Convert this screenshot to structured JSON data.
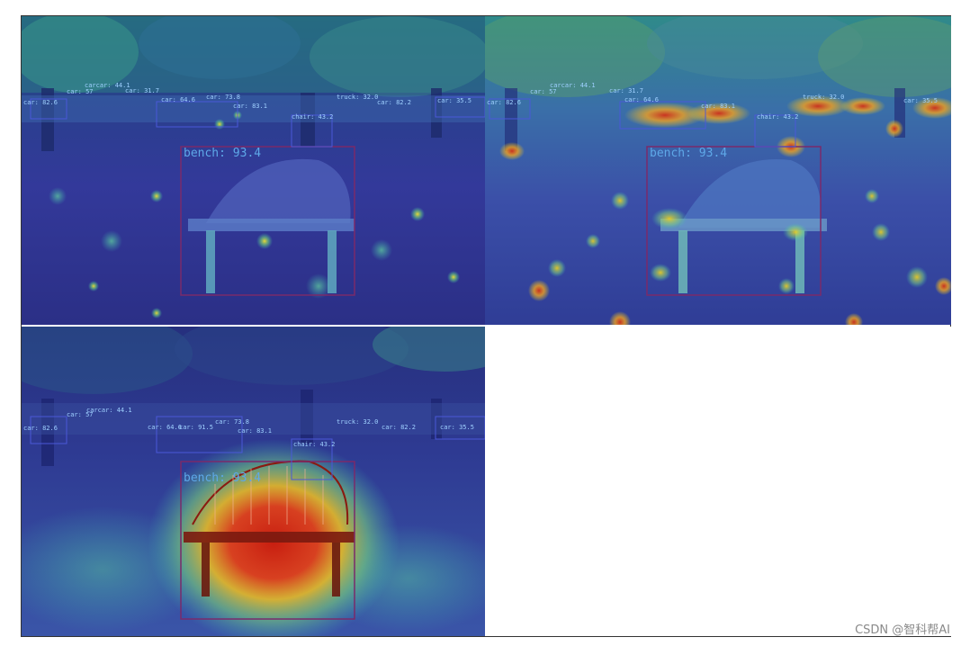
{
  "panels": [
    {
      "id": "panel-1",
      "caption": "",
      "heatmap_focus": "diffuse-background",
      "detections": [
        {
          "label": "bench: 93.4"
        },
        {
          "label": "car: 82.6"
        },
        {
          "label": "car: 57"
        },
        {
          "label": "carcar: 44.1"
        },
        {
          "label": "car: 31.7"
        },
        {
          "label": "car: 64.6"
        },
        {
          "label": "car: 73.8"
        },
        {
          "label": "car: 83.1"
        },
        {
          "label": "chair: 43.2"
        },
        {
          "label": "truck: 32.0"
        },
        {
          "label": "car: 82.2"
        },
        {
          "label": "car: 35.5"
        }
      ]
    },
    {
      "id": "panel-2",
      "caption": "",
      "heatmap_focus": "cars-and-background",
      "detections": [
        {
          "label": "bench: 93.4"
        },
        {
          "label": "car: 82.6"
        },
        {
          "label": "car: 57"
        },
        {
          "label": "carcar: 44.1"
        },
        {
          "label": "car: 31.7"
        },
        {
          "label": "car: 64.6"
        },
        {
          "label": "car: 83.1"
        },
        {
          "label": "chair: 43.2"
        },
        {
          "label": "truck: 32.0"
        },
        {
          "label": "car: 35.5"
        }
      ]
    },
    {
      "id": "panel-3",
      "caption": "",
      "heatmap_focus": "bench",
      "detections": [
        {
          "label": "bench: 93.4"
        },
        {
          "label": "car: 82.6"
        },
        {
          "label": "car: 57"
        },
        {
          "label": "carcar: 44.1"
        },
        {
          "label": "car: 64.6"
        },
        {
          "label": "car: 91.5"
        },
        {
          "label": "car: 73.8"
        },
        {
          "label": "car: 83.1"
        },
        {
          "label": "chair: 43.2"
        },
        {
          "label": "truck: 32.0"
        },
        {
          "label": "car: 82.2"
        },
        {
          "label": "car: 35.5"
        }
      ]
    }
  ],
  "colors": {
    "heat_low": "#2a2f9a",
    "heat_mid": "#3fb7b0",
    "heat_high": "#f0d020",
    "heat_peak": "#d0301a",
    "bbox_bench": "#7a2a6a",
    "bbox_car": "#4a58d8"
  },
  "watermark": "CSDN @智科帮AI"
}
